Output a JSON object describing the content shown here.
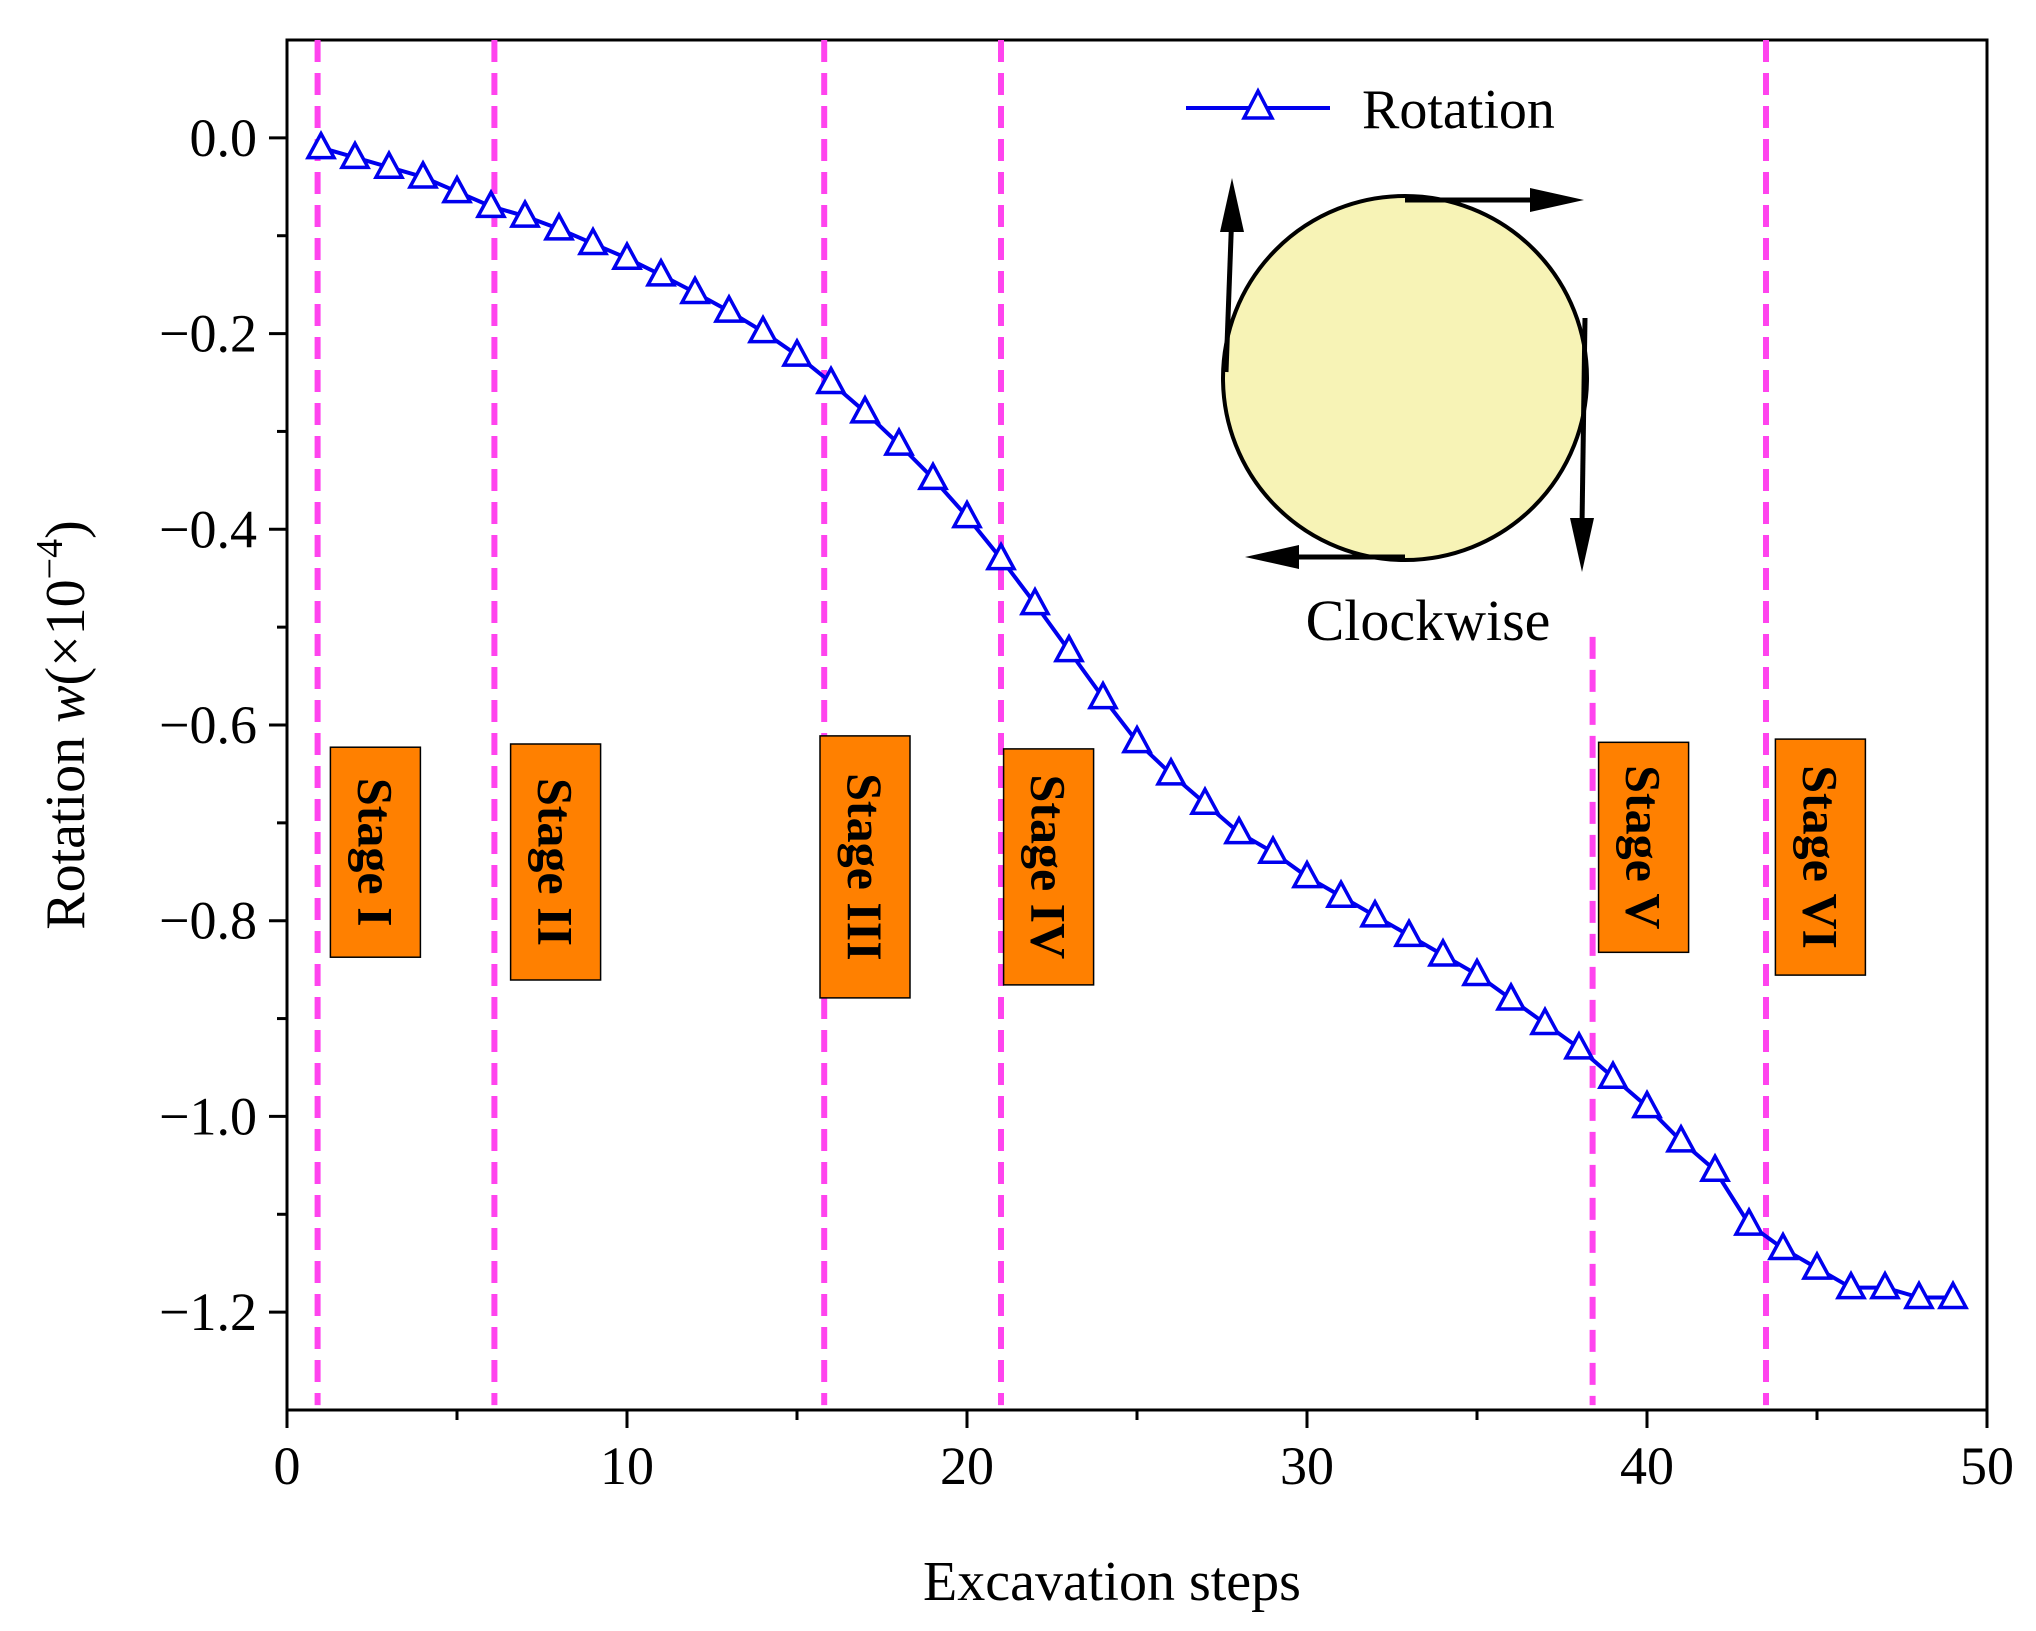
{
  "chart_data": {
    "type": "line",
    "title": "",
    "xlabel": "Excavation steps",
    "ylabel_prefix": "Rotation ",
    "ylabel_var": "w",
    "ylabel_suffix": "(×10",
    "ylabel_exp": "−4",
    "ylabel_close": ")",
    "xlim": [
      0,
      50
    ],
    "ylim": [
      -1.3,
      0.1
    ],
    "xticks": [
      0,
      10,
      20,
      30,
      40,
      50
    ],
    "xtick_labels": [
      "0",
      "10",
      "20",
      "30",
      "40",
      "50"
    ],
    "yticks": [
      0.0,
      -0.2,
      -0.4,
      -0.6,
      -0.8,
      -1.0,
      -1.2
    ],
    "ytick_labels": [
      "0.0",
      "−0.2",
      "−0.4",
      "−0.6",
      "−0.8",
      "−1.0",
      "−1.2"
    ],
    "legend": {
      "label": "Rotation",
      "position": "top-right"
    },
    "series": [
      {
        "name": "Rotation",
        "color": "#0000ee",
        "marker": "triangle-open",
        "x": [
          1,
          2,
          3,
          4,
          5,
          6,
          7,
          8,
          9,
          10,
          11,
          12,
          13,
          14,
          15,
          16,
          17,
          18,
          19,
          20,
          21,
          22,
          23,
          24,
          25,
          26,
          27,
          28,
          29,
          30,
          31,
          32,
          33,
          34,
          35,
          36,
          37,
          38,
          39,
          40,
          41,
          42,
          43,
          44,
          45,
          46,
          47,
          48,
          49
        ],
        "y": [
          -0.01,
          -0.02,
          -0.03,
          -0.04,
          -0.055,
          -0.07,
          -0.08,
          -0.093,
          -0.108,
          -0.123,
          -0.14,
          -0.158,
          -0.177,
          -0.198,
          -0.222,
          -0.25,
          -0.28,
          -0.313,
          -0.348,
          -0.387,
          -0.43,
          -0.476,
          -0.524,
          -0.572,
          -0.617,
          -0.65,
          -0.68,
          -0.71,
          -0.73,
          -0.755,
          -0.775,
          -0.795,
          -0.815,
          -0.835,
          -0.855,
          -0.88,
          -0.905,
          -0.93,
          -0.96,
          -0.99,
          -1.025,
          -1.055,
          -1.11,
          -1.135,
          -1.155,
          -1.175,
          -1.175,
          -1.185,
          -1.185
        ]
      }
    ],
    "stage_lines": {
      "color": "#ff44ee",
      "x": [
        0.9,
        6.1,
        15.8,
        21.0,
        38.4,
        43.5
      ]
    },
    "stages": [
      {
        "label": "Stage I",
        "x": 2.6,
        "y": -0.73
      },
      {
        "label": "Stage II",
        "x": 7.9,
        "y": -0.74
      },
      {
        "label": "Stage III",
        "x": 17.0,
        "y": -0.745
      },
      {
        "label": "Stage IV",
        "x": 22.4,
        "y": -0.745
      },
      {
        "label": "Stage V",
        "x": 39.9,
        "y": -0.725
      },
      {
        "label": "Stage VI",
        "x": 45.1,
        "y": -0.735
      }
    ],
    "stage_box_color": "#ff8000",
    "inset": {
      "label": "Clockwise",
      "fill": "#f7f3b6"
    }
  }
}
